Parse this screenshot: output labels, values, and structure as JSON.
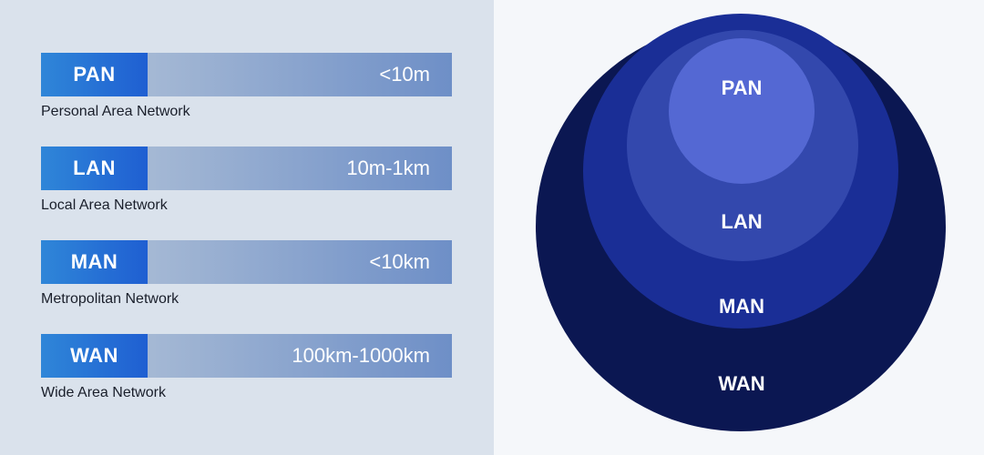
{
  "networks": [
    {
      "abbr": "PAN",
      "range": "<10m",
      "name": "Personal Area Network"
    },
    {
      "abbr": "LAN",
      "range": "10m-1km",
      "name": "Local Area Network"
    },
    {
      "abbr": "MAN",
      "range": "<10km",
      "name": "Metropolitan Network"
    },
    {
      "abbr": "WAN",
      "range": "100km-1000km",
      "name": "Wide Area Network"
    }
  ],
  "circles": {
    "wan_label": "WAN",
    "man_label": "MAN",
    "lan_label": "LAN",
    "pan_label": "PAN",
    "colors": {
      "wan": "#0b1752",
      "man": "#1a2e96",
      "lan": "#3348ad",
      "pan": "#5468d3"
    }
  },
  "colors": {
    "left_background": "#dae2ec",
    "right_background": "#f5f7fa",
    "tag_gradient": [
      "#2f86d8",
      "#1f5fd2"
    ],
    "bar_gradient": [
      "#b8c7d9",
      "#6e8fc7"
    ]
  }
}
